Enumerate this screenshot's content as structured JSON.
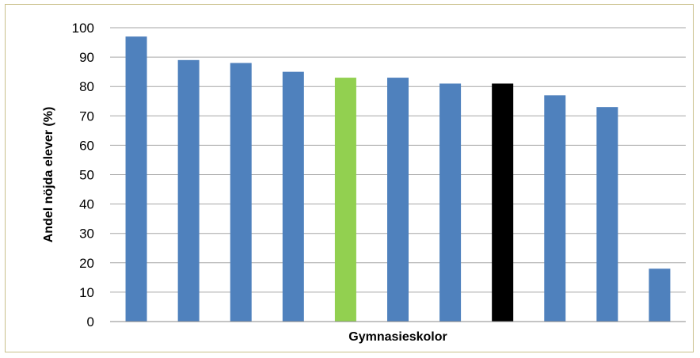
{
  "chart_data": {
    "type": "bar",
    "categories": [
      "",
      "",
      "",
      "",
      "",
      "",
      "",
      "",
      "",
      "",
      ""
    ],
    "values": [
      97,
      89,
      88,
      85,
      83,
      83,
      81,
      81,
      77,
      73,
      18
    ],
    "bar_colors": [
      "#4f81bd",
      "#4f81bd",
      "#4f81bd",
      "#4f81bd",
      "#92d050",
      "#4f81bd",
      "#4f81bd",
      "#000000",
      "#4f81bd",
      "#4f81bd",
      "#4f81bd"
    ],
    "title": "",
    "xlabel": "Gymnasieskolor",
    "ylabel": "Andel nöjda elever (%)",
    "ylim": [
      0,
      100
    ],
    "yticks": [
      "0",
      "10",
      "20",
      "30",
      "40",
      "50",
      "60",
      "70",
      "80",
      "90",
      "100"
    ],
    "grid": true,
    "legend": "none"
  }
}
